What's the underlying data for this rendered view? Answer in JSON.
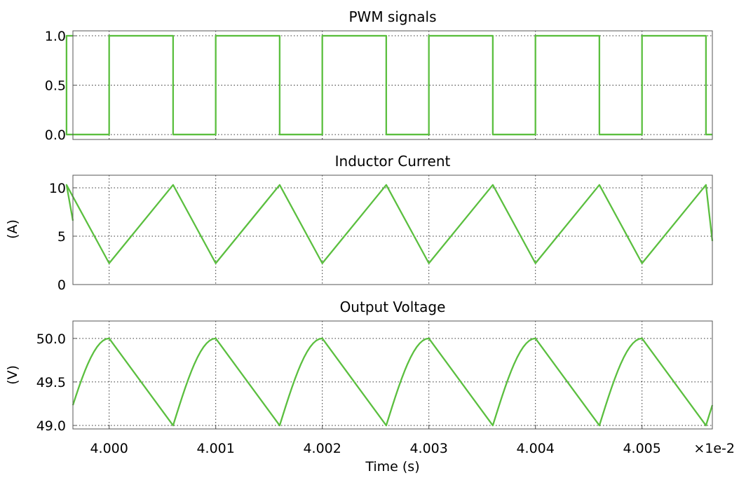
{
  "colors": {
    "trace": "#5bbf3f"
  },
  "x_axis": {
    "label": "Time (s)",
    "multiplier": "×1e-2",
    "ticks": [
      4.0,
      4.001,
      4.002,
      4.003,
      4.004,
      4.005
    ],
    "tick_labels": [
      "4.000",
      "4.001",
      "4.002",
      "4.003",
      "4.004",
      "4.005"
    ],
    "xlim": [
      3.99966,
      4.00566
    ]
  },
  "chart_data": [
    {
      "type": "line",
      "title": "PWM signals",
      "ylabel": "",
      "ylim": [
        -0.05,
        1.05
      ],
      "yticks": [
        0.0,
        0.5,
        1.0
      ],
      "ytick_labels": [
        "0.0",
        "0.5",
        "1.0"
      ],
      "grid": true,
      "series": [
        {
          "x": [
            3.99966,
            3.9996,
            3.9996,
            4.0,
            4.0,
            4.0006,
            4.0006,
            4.001,
            4.001,
            4.0016,
            4.0016,
            4.002,
            4.002,
            4.0026,
            4.0026,
            4.003,
            4.003,
            4.0036,
            4.0036,
            4.004,
            4.004,
            4.0046,
            4.0046,
            4.005,
            4.005,
            4.0056,
            4.0056,
            4.00566
          ],
          "y": [
            1,
            1,
            0,
            0,
            1,
            1,
            0,
            0,
            1,
            1,
            0,
            0,
            1,
            1,
            0,
            0,
            1,
            1,
            0,
            0,
            1,
            1,
            0,
            0,
            1,
            1,
            0,
            0
          ]
        }
      ]
    },
    {
      "type": "line",
      "title": "Inductor Current",
      "ylabel": "(A)",
      "ylim": [
        0,
        11.3
      ],
      "yticks": [
        0,
        5,
        10
      ],
      "ytick_labels": [
        "0",
        "5",
        "10"
      ],
      "grid": true,
      "series": [
        {
          "x": [
            3.99966,
            3.9996,
            4.0,
            4.0006,
            4.001,
            4.0016,
            4.002,
            4.0026,
            4.003,
            4.0036,
            4.004,
            4.0046,
            4.005,
            4.0056,
            4.00566
          ],
          "y": [
            6.6,
            10.3,
            2.2,
            10.3,
            2.2,
            10.3,
            2.2,
            10.3,
            2.2,
            10.3,
            2.2,
            10.3,
            2.2,
            10.3,
            4.5
          ]
        }
      ]
    },
    {
      "type": "line",
      "title": "Output Voltage",
      "ylabel": "(V)",
      "ylim": [
        48.96,
        50.2
      ],
      "yticks": [
        49.0,
        49.5,
        50.0
      ],
      "ytick_labels": [
        "49.0",
        "49.5",
        "50.0"
      ],
      "grid": true,
      "series": [
        {
          "period": 0.001,
          "min_time_offset": -0.0004,
          "vmin": 49.0,
          "vmax": 50.0,
          "rise_duration": 0.0004,
          "fall_duration": 0.0006
        }
      ]
    }
  ]
}
